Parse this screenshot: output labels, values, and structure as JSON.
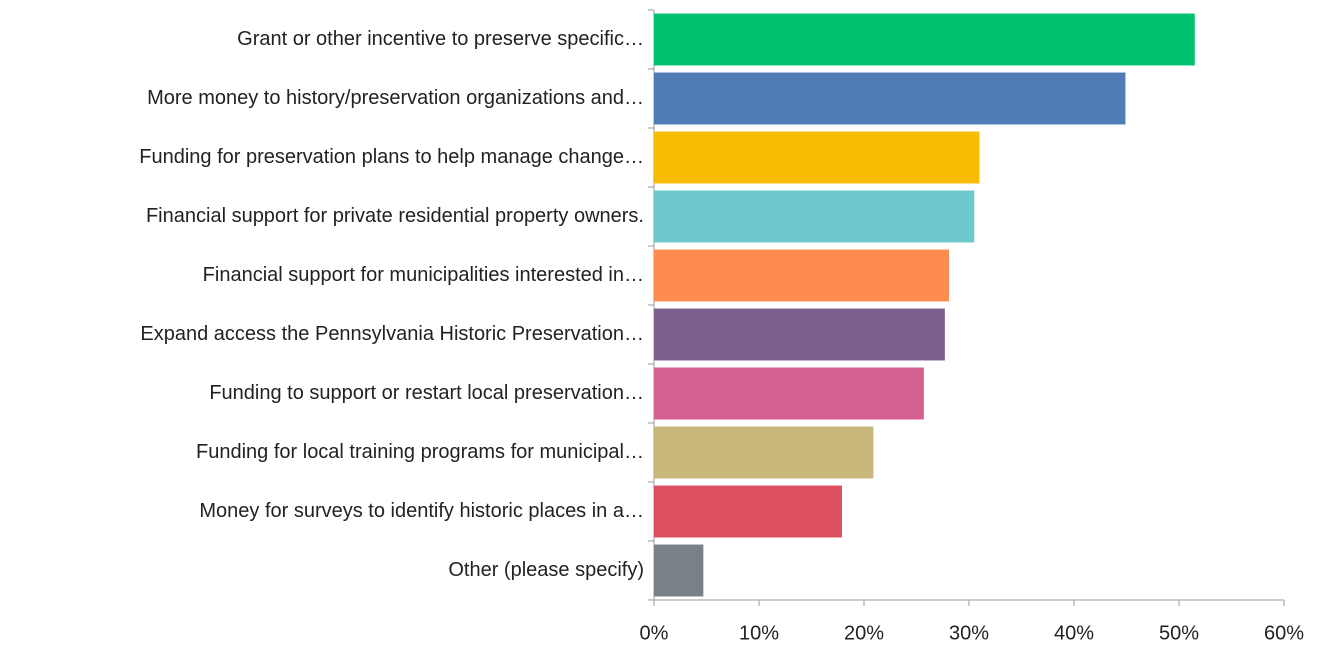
{
  "chart_data": {
    "type": "bar",
    "orientation": "horizontal",
    "categories": [
      "Grant or other incentive to preserve specific…",
      "More money to history/preservation organizations and…",
      "Funding for preservation plans to help manage change…",
      "Financial support for private residential property owners.",
      "Financial support for municipalities interested in…",
      "Expand access the Pennsylvania Historic Preservation…",
      "Funding to support or restart local preservation…",
      "Funding for local training programs for municipal…",
      "Money for surveys to identify historic places in a…",
      "Other (please specify)"
    ],
    "values": [
      51.5,
      44.9,
      31,
      30.5,
      28.1,
      27.7,
      25.7,
      20.9,
      17.9,
      4.7
    ],
    "colors": [
      "#00c170",
      "#4f7cb5",
      "#f8bd00",
      "#6cc8cc",
      "#ff8c4f",
      "#7c5f8f",
      "#d55f8e",
      "#c9b87b",
      "#db4f5f",
      "#7a8087"
    ],
    "xlim": [
      0,
      60
    ],
    "xticks": [
      {
        "value": 0,
        "label": "0%"
      },
      {
        "value": 10,
        "label": "10%"
      },
      {
        "value": 20,
        "label": "20%"
      },
      {
        "value": 30,
        "label": "30%"
      },
      {
        "value": 40,
        "label": "40%"
      },
      {
        "value": 50,
        "label": "50%"
      },
      {
        "value": 60,
        "label": "60%"
      }
    ],
    "grid": false
  }
}
